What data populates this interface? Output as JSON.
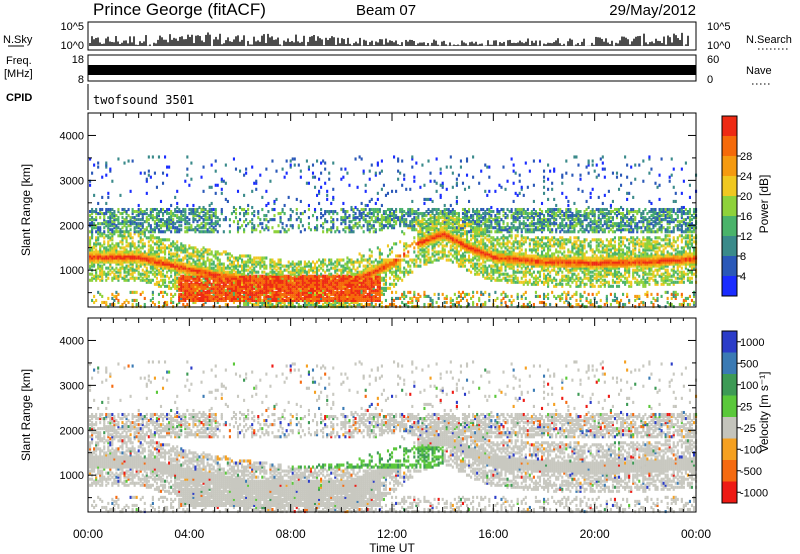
{
  "header": {
    "station": "Prince George (fitACF)",
    "beam": "Beam 07",
    "date": "29/May/2012"
  },
  "noise_panel": {
    "left_label": "N.Sky",
    "right_label": "N.Search",
    "left_ticks": [
      "10^5",
      "10^0"
    ],
    "right_ticks": [
      "10^5",
      "10^0"
    ]
  },
  "freq_panel": {
    "left_label_line1": "Freq.",
    "left_label_line2": "[MHz]",
    "left_ticks": [
      "18",
      "8"
    ],
    "right_label": "Nave",
    "right_ticks": [
      "60",
      "0"
    ]
  },
  "cpid_panel": {
    "label": "CPID",
    "value": "twofsound 3501"
  },
  "x_axis": {
    "label": "Time UT",
    "tick_labels": [
      "00:00",
      "04:00",
      "08:00",
      "12:00",
      "16:00",
      "20:00",
      "00:00"
    ]
  },
  "power_panel": {
    "ylabel": "Slant Range [km]",
    "ytick_labels": [
      "1000",
      "2000",
      "3000",
      "4000"
    ],
    "colorbar_label": "Power [dB]",
    "colorbar_ticks": [
      "4",
      "8",
      "12",
      "16",
      "20",
      "24",
      "28"
    ],
    "colorbar_colors": [
      "#1a2cff",
      "#2a58b8",
      "#3a8a8a",
      "#4ab36a",
      "#8ed23a",
      "#f0c820",
      "#f59a10",
      "#f56a0a",
      "#ee2a14"
    ]
  },
  "velocity_panel": {
    "ylabel": "Slant Range [km]",
    "ytick_labels": [
      "1000",
      "2000",
      "3000",
      "4000"
    ],
    "colorbar_label": "Velocity [m s⁻¹]",
    "colorbar_ticks": [
      "1000",
      "500",
      "100",
      "25",
      "-25",
      "-100",
      "-500",
      "-1000"
    ],
    "colorbar_colors": [
      "#2b3cc8",
      "#3a7ab4",
      "#3d9a55",
      "#5ac83a",
      "#c4c4bc",
      "#f5a020",
      "#f56a10",
      "#ee1a14"
    ],
    "ground_scatter_color": "#c8c8c0"
  },
  "chart_data": {
    "type": "heatmap",
    "x_unit": "hours UT",
    "xlim": [
      0,
      24
    ],
    "ylim_km": [
      180,
      4500
    ],
    "panels": [
      {
        "name": "Power [dB]",
        "range": [
          0,
          30
        ],
        "bands": [
          {
            "description": "main ionospheric echo band",
            "range_km_at_hour": [
              [
                0,
                1280
              ],
              [
                2,
                1280
              ],
              [
                4,
                1000
              ],
              [
                6,
                780
              ],
              [
                8,
                650
              ],
              [
                10,
                680
              ],
              [
                11,
                900
              ],
              [
                12,
                1150
              ],
              [
                13,
                1600
              ],
              [
                14,
                1800
              ],
              [
                15,
                1500
              ],
              [
                16,
                1280
              ],
              [
                18,
                1180
              ],
              [
                20,
                1150
              ],
              [
                22,
                1180
              ],
              [
                24,
                1250
              ]
            ],
            "power_db": 26
          },
          {
            "description": "strong near-range echoes",
            "hours": [
              3.5,
              11.5
            ],
            "range_km": [
              400,
              900
            ],
            "power_db": 28
          }
        ]
      },
      {
        "name": "Velocity [m s⁻¹]",
        "range": [
          -1000,
          1000
        ],
        "dominant": "ground scatter (grey)",
        "features": [
          {
            "description": "green positive-velocity patch",
            "hours": [
              8,
              14
            ],
            "range_km": [
              1200,
              1600
            ],
            "velocity": 100
          },
          {
            "description": "orange negative-velocity patches",
            "hours": [
              5,
              8
            ],
            "range_km": [
              1300,
              1800
            ],
            "velocity": -100
          }
        ]
      }
    ]
  }
}
